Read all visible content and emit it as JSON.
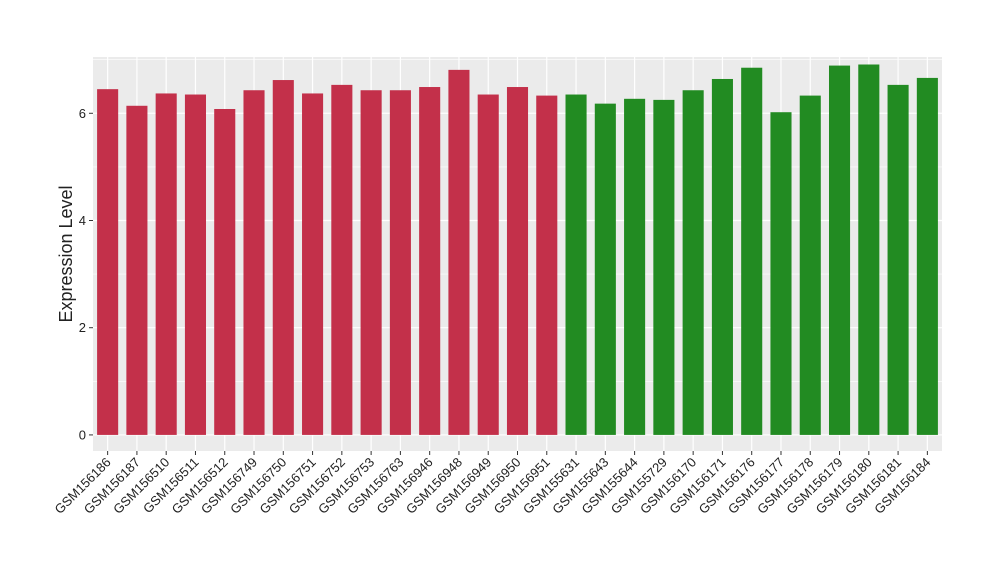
{
  "chart_data": {
    "type": "bar",
    "title": "",
    "xlabel": "",
    "ylabel": "Expression Level",
    "ylim": [
      -0.3,
      7.05
    ],
    "yticks": [
      0,
      2,
      4,
      6
    ],
    "grid": true,
    "legend": "none",
    "categories": [
      "GSM156186",
      "GSM156187",
      "GSM156510",
      "GSM156511",
      "GSM156512",
      "GSM156749",
      "GSM156750",
      "GSM156751",
      "GSM156752",
      "GSM156753",
      "GSM156763",
      "GSM156946",
      "GSM156948",
      "GSM156949",
      "GSM156950",
      "GSM156951",
      "GSM155631",
      "GSM155643",
      "GSM155644",
      "GSM155729",
      "GSM156170",
      "GSM156171",
      "GSM156176",
      "GSM156177",
      "GSM156178",
      "GSM156179",
      "GSM156180",
      "GSM156181",
      "GSM156184"
    ],
    "values": [
      6.45,
      6.14,
      6.37,
      6.35,
      6.08,
      6.43,
      6.62,
      6.37,
      6.53,
      6.43,
      6.43,
      6.49,
      6.81,
      6.35,
      6.49,
      6.33,
      6.35,
      6.18,
      6.27,
      6.25,
      6.43,
      6.64,
      6.85,
      6.02,
      6.33,
      6.89,
      6.91,
      6.53,
      6.66
    ],
    "groups": [
      "a",
      "a",
      "a",
      "a",
      "a",
      "a",
      "a",
      "a",
      "a",
      "a",
      "a",
      "a",
      "a",
      "a",
      "a",
      "a",
      "b",
      "b",
      "b",
      "b",
      "b",
      "b",
      "b",
      "b",
      "b",
      "b",
      "b",
      "b",
      "b"
    ],
    "colors": {
      "a": "#c3304a",
      "b": "#228b22"
    },
    "panel_color": "#ebebeb",
    "grid_color": "#ffffff"
  }
}
